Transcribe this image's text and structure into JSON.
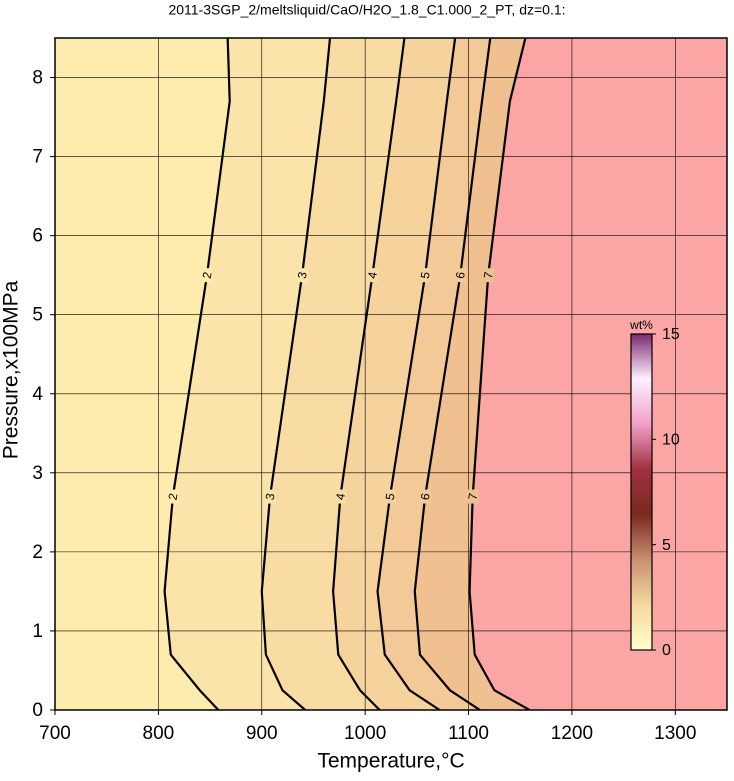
{
  "chart_data": {
    "type": "contour",
    "title": "2011-3SGP_2/meltsliquid/CaO/H2O_1.8_C1.000_2_PT, dz=0.1:",
    "x_label": "Temperature,°C",
    "y_label": "Pressure,x100MPa",
    "xlim": [
      700,
      1350
    ],
    "ylim": [
      0,
      8.5
    ],
    "xticks": [
      700,
      800,
      900,
      1000,
      1100,
      1200,
      1300
    ],
    "yticks": [
      0,
      1,
      2,
      3,
      4,
      5,
      6,
      7,
      8
    ],
    "grid": true,
    "background_color": "#fca5a5",
    "contours": [
      {
        "level": 2,
        "color": "#fdecae",
        "x": [
          867,
          869,
          847,
          814,
          806,
          812,
          840,
          858
        ],
        "y": [
          8.5,
          7.7,
          5.5,
          2.7,
          1.5,
          0.7,
          0.25,
          0
        ]
      },
      {
        "level": 3,
        "color": "#fbe4a9",
        "x": [
          966,
          960,
          939,
          908,
          900,
          904,
          920,
          942
        ],
        "y": [
          8.5,
          7.7,
          5.5,
          2.7,
          1.5,
          0.7,
          0.25,
          0
        ]
      },
      {
        "level": 4,
        "color": "#f9dca3",
        "x": [
          1038,
          1030,
          1007,
          976,
          969,
          974,
          995,
          1014
        ],
        "y": [
          8.5,
          7.7,
          5.5,
          2.7,
          1.5,
          0.7,
          0.25,
          0
        ]
      },
      {
        "level": 5,
        "color": "#f6d39d",
        "x": [
          1087,
          1079,
          1058,
          1024,
          1012,
          1019,
          1043,
          1072
        ],
        "y": [
          8.5,
          7.7,
          5.5,
          2.7,
          1.5,
          0.7,
          0.25,
          0
        ]
      },
      {
        "level": 6,
        "color": "#f3ca97",
        "x": [
          1121,
          1113,
          1092,
          1058,
          1048,
          1053,
          1082,
          1111
        ],
        "y": [
          8.5,
          7.7,
          5.5,
          2.7,
          1.5,
          0.7,
          0.25,
          0
        ]
      },
      {
        "level": 7,
        "color": "#f0c091",
        "x": [
          1155,
          1140,
          1119,
          1104,
          1101,
          1106,
          1125,
          1159
        ],
        "y": [
          8.5,
          7.7,
          5.5,
          2.7,
          1.5,
          0.7,
          0.25,
          0
        ]
      }
    ],
    "colorbar": {
      "label": "wt%",
      "lim": [
        0,
        15
      ],
      "ticks": [
        0,
        5,
        10,
        15
      ],
      "colors": [
        "#ffffc8",
        "#f5d8a0",
        "#c89070",
        "#7a2a1e",
        "#a03040",
        "#f0a0c8",
        "#fff0ff",
        "#7a2a70"
      ]
    }
  }
}
